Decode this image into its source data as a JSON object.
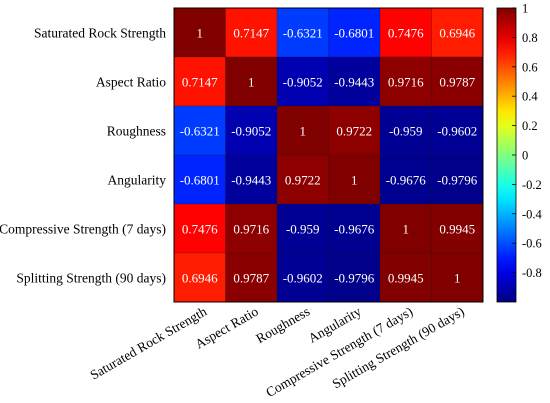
{
  "chart_data": {
    "type": "heatmap",
    "title": "",
    "xlabel": "",
    "ylabel": "",
    "row_labels": [
      "Saturated Rock Strength",
      "Aspect Ratio",
      "Roughness",
      "Angularity",
      "Compressive Strength (7 days)",
      "Splitting Strength (90 days)"
    ],
    "col_labels": [
      "Saturated Rock Strength",
      "Aspect Ratio",
      "Roughness",
      "Angularity",
      "Compressive Strength (7 days)",
      "Splitting Strength (90 days)"
    ],
    "values": [
      [
        1,
        0.7147,
        -0.6321,
        -0.6801,
        0.7476,
        0.6946
      ],
      [
        0.7147,
        1,
        -0.9052,
        -0.9443,
        0.9716,
        0.9787
      ],
      [
        -0.6321,
        -0.9052,
        1,
        0.9722,
        -0.959,
        -0.9602
      ],
      [
        -0.6801,
        -0.9443,
        0.9722,
        1,
        -0.9676,
        -0.9796
      ],
      [
        0.7476,
        0.9716,
        -0.959,
        -0.9676,
        1,
        0.9945
      ],
      [
        0.6946,
        0.9787,
        -0.9602,
        -0.9796,
        0.9945,
        1
      ]
    ],
    "cell_labels": [
      [
        "1",
        "0.7147",
        "-0.6321",
        "-0.6801",
        "0.7476",
        "0.6946"
      ],
      [
        "0.7147",
        "1",
        "-0.9052",
        "-0.9443",
        "0.9716",
        "0.9787"
      ],
      [
        "-0.6321",
        "-0.9052",
        "1",
        "0.9722",
        "-0.959",
        "-0.9602"
      ],
      [
        "-0.6801",
        "-0.9443",
        "0.9722",
        "1",
        "-0.9676",
        "-0.9796"
      ],
      [
        "0.7476",
        "0.9716",
        "-0.959",
        "-0.9676",
        "1",
        "0.9945"
      ],
      [
        "0.6946",
        "0.9787",
        "-0.9602",
        "-0.9796",
        "0.9945",
        "1"
      ]
    ],
    "colorbar": {
      "colormap": "jet",
      "range": [
        -1,
        1
      ],
      "ticks": [
        "1",
        "0.8",
        "0.6",
        "0.4",
        "0.2",
        "0",
        "-0.2",
        "-0.4",
        "-0.6",
        "-0.8"
      ],
      "tick_values": [
        1,
        0.8,
        0.6,
        0.4,
        0.2,
        0,
        -0.2,
        -0.4,
        -0.6,
        -0.8
      ]
    }
  }
}
